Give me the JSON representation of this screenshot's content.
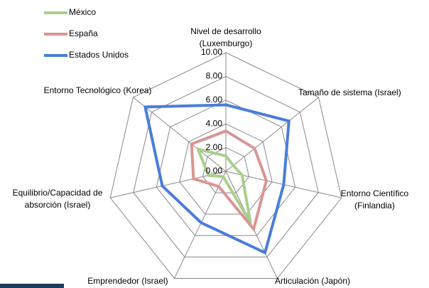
{
  "chart_data": {
    "type": "radar",
    "categories": [
      "Nivel de desarrollo (Luxemburgo)",
      "Tamaño de sistema (Israel)",
      "Entorno Científico (Finlandia)",
      "Articulación  (Japón)",
      "Emprendedor (Israel)",
      "Equilibrio/Capacidad  de absorción (Israel)",
      "Entorno Tecnológico (Korea)"
    ],
    "series": [
      {
        "name": "México",
        "color": "#a9cf8c",
        "values": [
          1.3,
          0.8,
          1.4,
          4.8,
          0.5,
          1.5,
          3.0
        ]
      },
      {
        "name": "España",
        "color": "#d99594",
        "values": [
          3.4,
          3.1,
          3.5,
          5.4,
          1.4,
          2.8,
          3.7
        ]
      },
      {
        "name": "Estados Unidos",
        "color": "#4a7ddb",
        "values": [
          5.6,
          6.8,
          5.0,
          7.6,
          4.8,
          5.5,
          8.7
        ]
      }
    ],
    "ylim": [
      0,
      10
    ],
    "yticks": [
      {
        "value": 0,
        "label": "0.00"
      },
      {
        "value": 2,
        "label": "2.00"
      },
      {
        "value": 4,
        "label": "4.00"
      },
      {
        "value": 6,
        "label": "6.00"
      },
      {
        "value": 8,
        "label": "8.00"
      },
      {
        "value": 10,
        "label": "10.00"
      }
    ],
    "grid": true,
    "legend": "top-left"
  }
}
